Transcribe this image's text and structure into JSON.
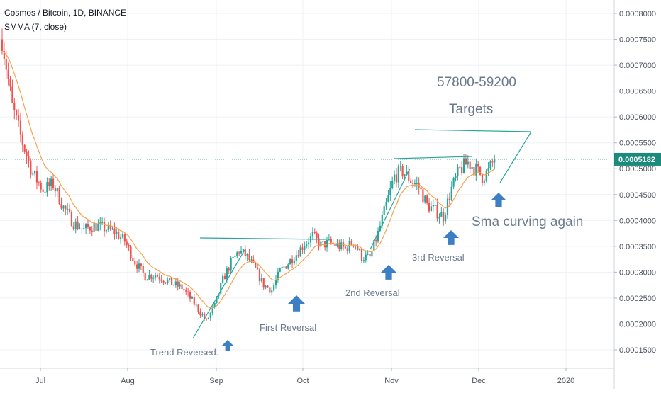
{
  "header": {
    "title": "Cosmos / Bitcoin, 1D, BINANCE",
    "indicator": "SMMA (7, close)"
  },
  "colors": {
    "up": "#26a69a",
    "down": "#ef5350",
    "smma": "#f7a24f",
    "annotation_line": "#26a69a",
    "arrow": "#3d7fc4",
    "annotation_text": "#6b7b8c",
    "grid": "#eef1f5",
    "price_tag_bg": "#1a8a7c"
  },
  "chart_data": {
    "type": "candlestick",
    "symbol": "Cosmos / Bitcoin",
    "interval": "1D",
    "exchange": "BINANCE",
    "indicator": "SMMA (7, close)",
    "ylim": [
      0.00011,
      0.00085
    ],
    "y_ticks": [
      "0.0001500",
      "0.0002000",
      "0.0002500",
      "0.0003000",
      "0.0003500",
      "0.0004000",
      "0.0004500",
      "0.0005000",
      "0.0005500",
      "0.0006000",
      "0.0006500",
      "0.0007000",
      "0.0007500",
      "0.0008000"
    ],
    "x_ticks": [
      "Jul",
      "Aug",
      "Sep",
      "Oct",
      "Nov",
      "Dec",
      "2020"
    ],
    "last_price": "0.0005182",
    "path": [
      [
        0,
        0.00075
      ],
      [
        5,
        0.00062
      ],
      [
        10,
        0.00055
      ],
      [
        15,
        0.00049
      ],
      [
        20,
        0.00046
      ],
      [
        25,
        0.00047
      ],
      [
        30,
        0.000425
      ],
      [
        35,
        0.000395
      ],
      [
        40,
        0.000382
      ],
      [
        45,
        0.00039
      ],
      [
        50,
        0.000385
      ],
      [
        55,
        0.000378
      ],
      [
        60,
        0.00036
      ],
      [
        65,
        0.00032
      ],
      [
        70,
        0.000292
      ],
      [
        75,
        0.000295
      ],
      [
        80,
        0.000285
      ],
      [
        85,
        0.000275
      ],
      [
        88,
        0.00027
      ],
      [
        92,
        0.00025
      ],
      [
        96,
        0.000228
      ],
      [
        100,
        0.000205
      ],
      [
        104,
        0.000235
      ],
      [
        108,
        0.000285
      ],
      [
        112,
        0.000318
      ],
      [
        116,
        0.000342
      ],
      [
        120,
        0.00033
      ],
      [
        124,
        0.000305
      ],
      [
        128,
        0.000275
      ],
      [
        132,
        0.000265
      ],
      [
        136,
        0.000302
      ],
      [
        140,
        0.000318
      ],
      [
        144,
        0.000335
      ],
      [
        148,
        0.000355
      ],
      [
        152,
        0.00037
      ],
      [
        156,
        0.000352
      ],
      [
        160,
        0.000357
      ],
      [
        164,
        0.000352
      ],
      [
        168,
        0.000345
      ],
      [
        172,
        0.00036
      ],
      [
        176,
        0.00033
      ],
      [
        180,
        0.000328
      ],
      [
        184,
        0.000375
      ],
      [
        188,
        0.00043
      ],
      [
        192,
        0.000485
      ],
      [
        196,
        0.000495
      ],
      [
        200,
        0.000478
      ],
      [
        204,
        0.000465
      ],
      [
        208,
        0.00043
      ],
      [
        212,
        0.000418
      ],
      [
        216,
        0.000408
      ],
      [
        220,
        0.000462
      ],
      [
        224,
        0.000498
      ],
      [
        228,
        0.000512
      ],
      [
        232,
        0.000498
      ],
      [
        235,
        0.000485
      ],
      [
        238,
        0.000495
      ],
      [
        241,
        0.0005182
      ]
    ],
    "annotations": {
      "targets_range": "57800-59200",
      "targets_label": "Targets",
      "smma_note": "Sma curving again",
      "reversal_1": "Trend Reversed.",
      "reversal_2": "First Reversal",
      "reversal_3": "2nd Reversal",
      "reversal_4": "3rd Reversal"
    }
  }
}
